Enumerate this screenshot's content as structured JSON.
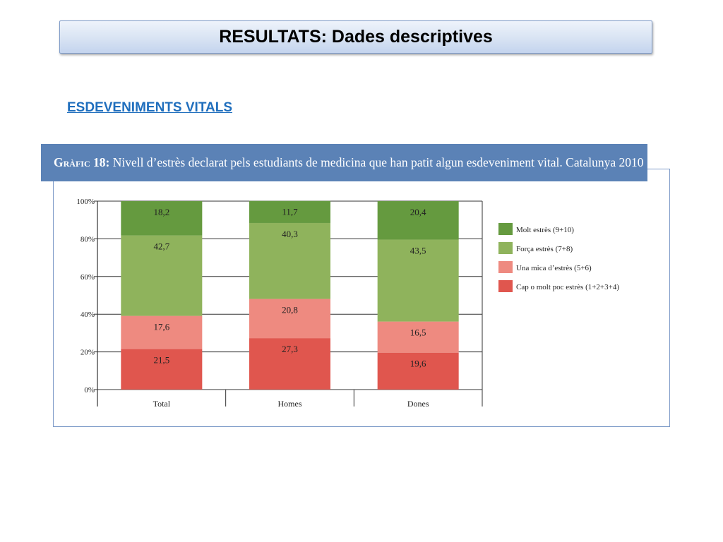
{
  "slide": {
    "title": "RESULTATS: Dades descriptives",
    "section": "ESDEVENIMENTS VITALS"
  },
  "chart_header": {
    "label": "Gràfic 18:",
    "text": "Nivell d’estrès declarat pels estudiants de medicina que han patit algun esdeveniment vital. Catalunya 2010"
  },
  "chart_data": {
    "type": "bar",
    "stacked": true,
    "categories": [
      "Total",
      "Homes",
      "Dones"
    ],
    "yticks": [
      "0%",
      "20%",
      "40%",
      "60%",
      "80%",
      "100%"
    ],
    "ylim": [
      0,
      100
    ],
    "grid": true,
    "legend_position": "right",
    "series": [
      {
        "name": "Cap o molt poc estrès (1+2+3+4)",
        "color": "#e0564e",
        "values": [
          21.5,
          27.3,
          19.6
        ],
        "labels": [
          "21,5",
          "27,3",
          "19,6"
        ]
      },
      {
        "name": "Una mica d’estrès (5+6)",
        "color": "#ee8a80",
        "values": [
          17.6,
          20.8,
          16.5
        ],
        "labels": [
          "17,6",
          "20,8",
          "16,5"
        ]
      },
      {
        "name": "Força estrès (7+8)",
        "color": "#8fb35c",
        "values": [
          42.7,
          40.3,
          43.5
        ],
        "labels": [
          "42,7",
          "40,3",
          "43,5"
        ]
      },
      {
        "name": "Molt estrès (9+10)",
        "color": "#659a3f",
        "values": [
          18.2,
          11.7,
          20.4
        ],
        "labels": [
          "18,2",
          "11,7",
          "20,4"
        ]
      }
    ],
    "legend_order": [
      3,
      2,
      1,
      0
    ]
  }
}
